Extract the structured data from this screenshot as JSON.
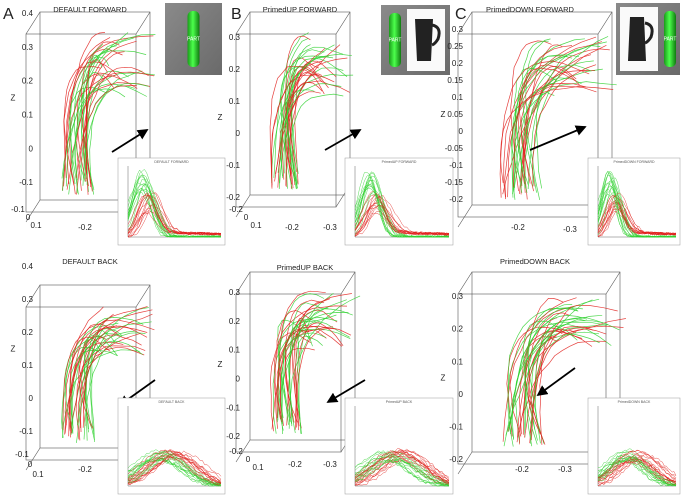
{
  "figure": {
    "panels": [
      {
        "letter": "A",
        "title": "DEFAULT FORWARD",
        "z_label": "Z",
        "z_ticks": [
          "0.4",
          "0.3",
          "0.2",
          "0.1",
          "0",
          "-0.1"
        ],
        "base_ticks": [
          "-0.1",
          "0",
          "0.1",
          "-0.2",
          "-0.3"
        ],
        "inset_title": "DEFAULT FORWARD",
        "icon_label": "PART"
      },
      {
        "letter": "B",
        "title": "PrimedUP FORWARD",
        "z_label": "Z",
        "z_ticks": [
          "0.3",
          "0.2",
          "0.1",
          "0",
          "-0.1",
          "-0.2"
        ],
        "base_ticks": [
          "-0.2",
          "0",
          "0.1",
          "-0.2",
          "-0.3"
        ],
        "inset_title": "PrimedUP FORWARD",
        "icon_label": "PART"
      },
      {
        "letter": "C",
        "title": "PrimedDOWN FORWARD",
        "z_label": "Z",
        "z_ticks": [
          "0.3",
          "0.25",
          "0.2",
          "0.15",
          "0.1",
          "0.05",
          "0",
          "-0.05",
          "-0.1",
          "-0.15",
          "-0.2"
        ],
        "base_ticks": [
          "-0.2",
          "-0.3"
        ],
        "inset_title": "PrimedDOWN FORWARD",
        "icon_label": "PART"
      },
      {
        "title": "DEFAULT BACK",
        "z_label": "Z",
        "z_ticks": [
          "0.4",
          "0.3",
          "0.2",
          "0.1",
          "0",
          "-0.1"
        ],
        "base_ticks": [
          "-0.1",
          "0",
          "0.1",
          "-0.2",
          "-0.3"
        ],
        "inset_title": "DEFAULT BACK"
      },
      {
        "title": "PrimedUP BACK",
        "z_label": "Z",
        "z_ticks": [
          "0.3",
          "0.2",
          "0.1",
          "0",
          "-0.1",
          "-0.2"
        ],
        "base_ticks": [
          "-0.2",
          "0",
          "0.1",
          "-0.2",
          "-0.3"
        ],
        "inset_title": "PrimedUP BACK"
      },
      {
        "title": "PrimedDOWN BACK",
        "z_label": "Z",
        "z_ticks": [
          "0.3",
          "0.2",
          "0.1",
          "0",
          "-0.1",
          "-0.2"
        ],
        "base_ticks": [
          "-0.2",
          "-0.3"
        ],
        "inset_title": "PrimedDOWN BACK"
      }
    ]
  }
}
